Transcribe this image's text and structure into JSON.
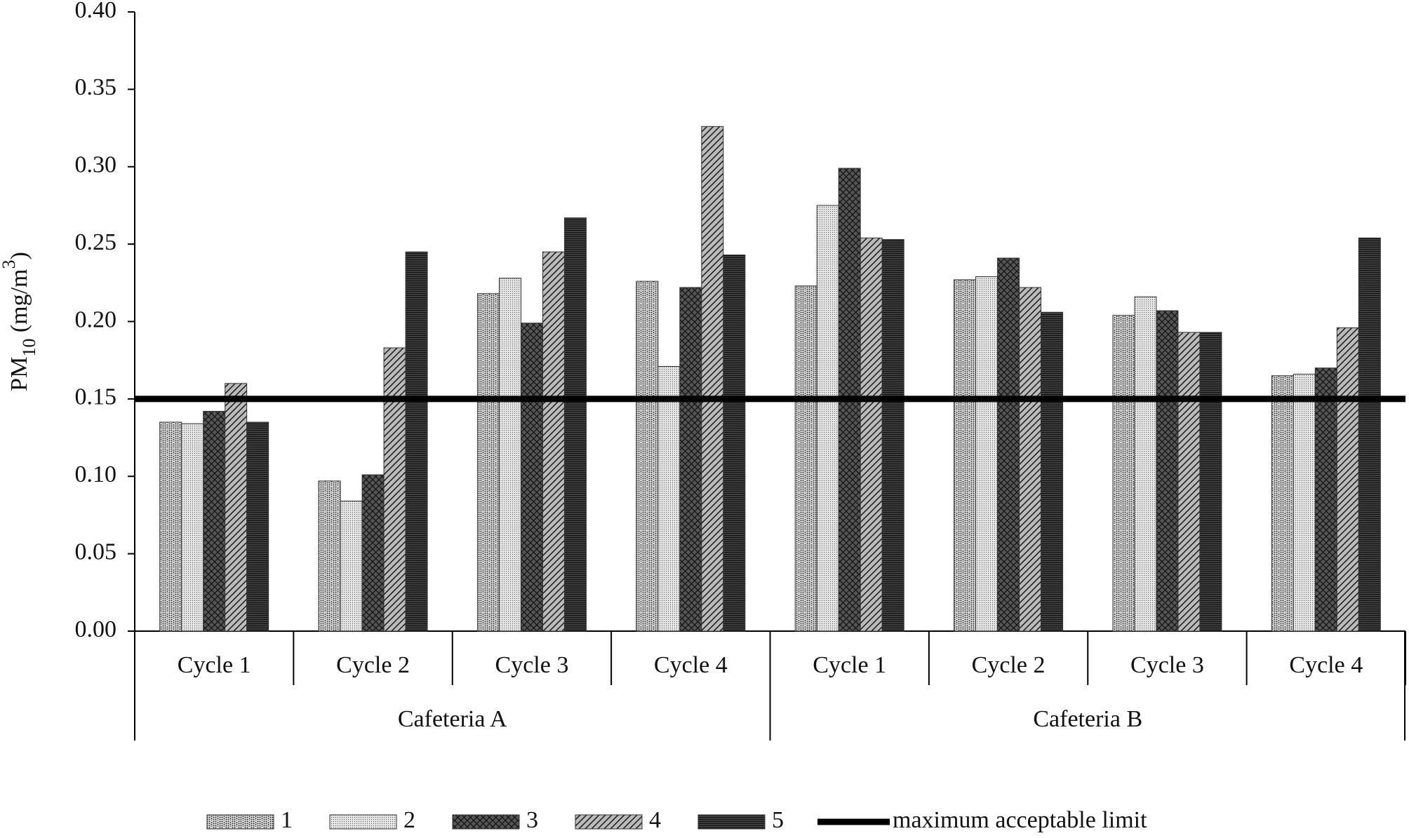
{
  "chart_data": {
    "type": "bar",
    "ylabel": [
      "PM",
      "10",
      " (mg/m",
      "3",
      ")"
    ],
    "groups": [
      {
        "name": "Cafeteria A",
        "categories": [
          "Cycle 1",
          "Cycle 2",
          "Cycle 3",
          "Cycle 4"
        ]
      },
      {
        "name": "Cafeteria B",
        "categories": [
          "Cycle 1",
          "Cycle 2",
          "Cycle 3",
          "Cycle 4"
        ]
      }
    ],
    "series": [
      {
        "name": "1",
        "color": "#d8d8d8",
        "values": [
          0.135,
          0.097,
          0.218,
          0.226,
          0.223,
          0.227,
          0.204,
          0.165
        ]
      },
      {
        "name": "2",
        "color": "#e6e6e6",
        "values": [
          0.134,
          0.084,
          0.228,
          0.171,
          0.275,
          0.229,
          0.216,
          0.166
        ]
      },
      {
        "name": "3",
        "color": "#555555",
        "values": [
          0.142,
          0.101,
          0.199,
          0.222,
          0.299,
          0.241,
          0.207,
          0.17
        ]
      },
      {
        "name": "4",
        "color": "#bbbbbb",
        "values": [
          0.16,
          0.183,
          0.245,
          0.326,
          0.254,
          0.222,
          0.193,
          0.196
        ]
      },
      {
        "name": "5",
        "color": "#444444",
        "values": [
          0.135,
          0.245,
          0.267,
          0.243,
          0.253,
          0.206,
          0.193,
          0.254
        ]
      }
    ],
    "hline": {
      "name": "maximum acceptable limit",
      "value": 0.15,
      "color": "#000000"
    },
    "ylim": [
      0,
      0.4
    ],
    "yticks": [
      {
        "value": 0,
        "label": "0.00"
      },
      {
        "value": 0.05,
        "label": "0.05"
      },
      {
        "value": 0.1,
        "label": "0.10"
      },
      {
        "value": 0.15,
        "label": "0.15"
      },
      {
        "value": 0.2,
        "label": "0.20"
      },
      {
        "value": 0.25,
        "label": "0.25"
      },
      {
        "value": 0.3,
        "label": "0.30"
      },
      {
        "value": 0.35,
        "label": "0.35"
      },
      {
        "value": 0.4,
        "label": "0.40"
      }
    ]
  }
}
